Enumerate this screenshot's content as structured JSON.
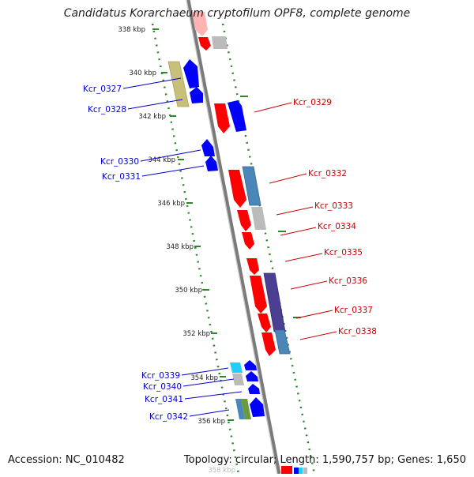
{
  "title": "Candidatus Korarchaeum cryptofilum OPF8, complete genome",
  "footer": {
    "accession": "Accession: NC_010482",
    "summary": "Topology: circular; Length: 1,590,757 bp; Genes: 1,650"
  },
  "scale_labels": [
    "338 kbp",
    "340 kbp",
    "342 kbp",
    "344 kbp",
    "346 kbp",
    "348 kbp",
    "350 kbp",
    "352 kbp",
    "354 kbp",
    "356 kbp"
  ],
  "partial_bottom_label": "358 kbp",
  "colors": {
    "forward": "#0000cc",
    "reverse": "#cc0000",
    "backbone": "#888888",
    "track_dots": "#2a8a2a",
    "gene_red": "#ff0000",
    "gene_blue": "#0000ff",
    "gene_gray": "#bbbbbb",
    "gene_olive": "#c8c07a",
    "gene_steel": "#4a86b8",
    "gene_navy": "#4a3f90",
    "gene_cyan": "#22ccff",
    "gene_green": "#6a9a40"
  },
  "forward_labels": [
    "Kcr_0327",
    "Kcr_0328",
    "Kcr_0330",
    "Kcr_0331",
    "Kcr_0339",
    "Kcr_0340",
    "Kcr_0341",
    "Kcr_0342"
  ],
  "reverse_labels": [
    "Kcr_0329",
    "Kcr_0332",
    "Kcr_0333",
    "Kcr_0334",
    "Kcr_0335",
    "Kcr_0336",
    "Kcr_0337",
    "Kcr_0338"
  ]
}
